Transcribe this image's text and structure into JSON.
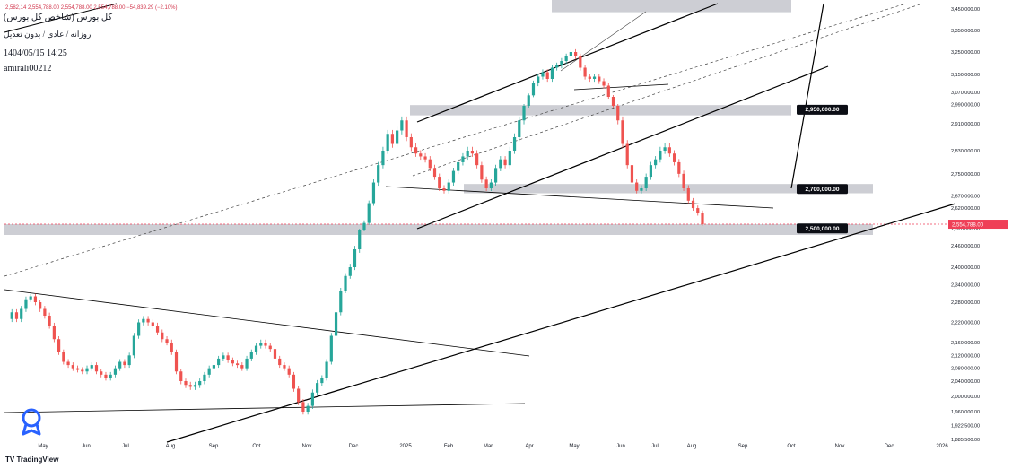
{
  "header": {
    "title": "کل بورس (شاخص کل بورس)",
    "subtitle": "روزانه / عادی / بدون تعدیل",
    "date": "1404/05/15 14:25",
    "author": "amirali00212",
    "ohlc_line": "2,582,14 2,554,788.00 2,554,788.00 2,554,788.00 −54,839.29 (−2.10%)"
  },
  "branding": {
    "name": "TradingView"
  },
  "colors": {
    "up": "#26a69a",
    "down": "#ef5350",
    "zone": "#c4c6cc",
    "label_bg": "#0c0e15",
    "current_price": "#ef3f57",
    "line": "#000000",
    "dash": "#444444"
  },
  "chart_data": {
    "type": "candlestick",
    "title": "",
    "xlabel": "",
    "ylabel": "",
    "ylim": [
      1880000,
      3460000
    ],
    "x_ticks": [
      "May",
      "Jun",
      "Jul",
      "Aug",
      "Sep",
      "Oct",
      "Nov",
      "Dec",
      "2025",
      "Feb",
      "Mar",
      "Apr",
      "May",
      "Jun",
      "Jul",
      "Aug",
      "Sep",
      "Oct",
      "Nov",
      "Dec",
      "2026"
    ],
    "y_ticks": [
      "3,450,000.00",
      "3,350,000.00",
      "3,250,000.00",
      "3,150,000.00",
      "3,070,000.00",
      "2,990,000.00",
      "2,910,000.00",
      "2,830,000.00",
      "2,750,000.00",
      "2,670,000.00",
      "2,620,000.00",
      "2,520,000.00",
      "2,460,000.00",
      "2,400,000.00",
      "2,340,000.00",
      "2,280,000.00",
      "2,220,000.00",
      "2,160,000.00",
      "2,120,000.00",
      "2,080,000.00",
      "2,040,000.00",
      "2,000,000.00",
      "1,960,000.00",
      "1,922,500.00",
      "1,885,500.00"
    ],
    "current_price": 2554788,
    "current_price_label": "2,554,788.00",
    "zones": [
      {
        "from": 3435000,
        "to": 3460000
      },
      {
        "from": 2935000,
        "to": 2985000,
        "label": "2,950,000.00"
      },
      {
        "from": 2680000,
        "to": 2715000,
        "label": "2,700,000.00"
      },
      {
        "from": 2490000,
        "to": 2555000,
        "label": "2,500,000.00"
      }
    ],
    "series": [
      {
        "values": [
          2230000,
          2250000,
          2230000,
          2260000,
          2290000,
          2300000,
          2280000,
          2260000,
          2240000,
          2210000,
          2170000,
          2130000,
          2100000,
          2090000,
          2080000,
          2075000,
          2070000,
          2080000,
          2090000,
          2070000,
          2060000,
          2050000,
          2060000,
          2080000,
          2100000,
          2090000,
          2120000,
          2180000,
          2220000,
          2230000,
          2220000,
          2210000,
          2190000,
          2170000,
          2160000,
          2130000,
          2070000,
          2040000,
          2030000,
          2025000,
          2030000,
          2040000,
          2060000,
          2080000,
          2090000,
          2110000,
          2120000,
          2105000,
          2095000,
          2090000,
          2080000,
          2110000,
          2130000,
          2150000,
          2160000,
          2150000,
          2140000,
          2110000,
          2090000,
          2080000,
          2060000,
          2020000,
          1985000,
          1960000,
          1975000,
          2010000,
          2035000,
          2050000,
          2100000,
          2180000,
          2250000,
          2320000,
          2370000,
          2400000,
          2450000,
          2510000,
          2560000,
          2640000,
          2720000,
          2780000,
          2830000,
          2880000,
          2850000,
          2890000,
          2920000,
          2870000,
          2840000,
          2820000,
          2810000,
          2800000,
          2770000,
          2740000,
          2700000,
          2690000,
          2720000,
          2760000,
          2790000,
          2810000,
          2830000,
          2820000,
          2780000,
          2730000,
          2700000,
          2720000,
          2770000,
          2800000,
          2780000,
          2830000,
          2870000,
          2920000,
          2980000,
          3050000,
          3110000,
          3140000,
          3160000,
          3130000,
          3180000,
          3190000,
          3210000,
          3230000,
          3250000,
          3230000,
          3180000,
          3140000,
          3130000,
          3140000,
          3120000,
          3100000,
          3040000,
          2980000,
          2920000,
          2850000,
          2780000,
          2720000,
          2690000,
          2700000,
          2740000,
          2780000,
          2800000,
          2830000,
          2840000,
          2820000,
          2790000,
          2750000,
          2700000,
          2650000,
          2620000,
          2600000,
          2555000
        ]
      }
    ]
  }
}
